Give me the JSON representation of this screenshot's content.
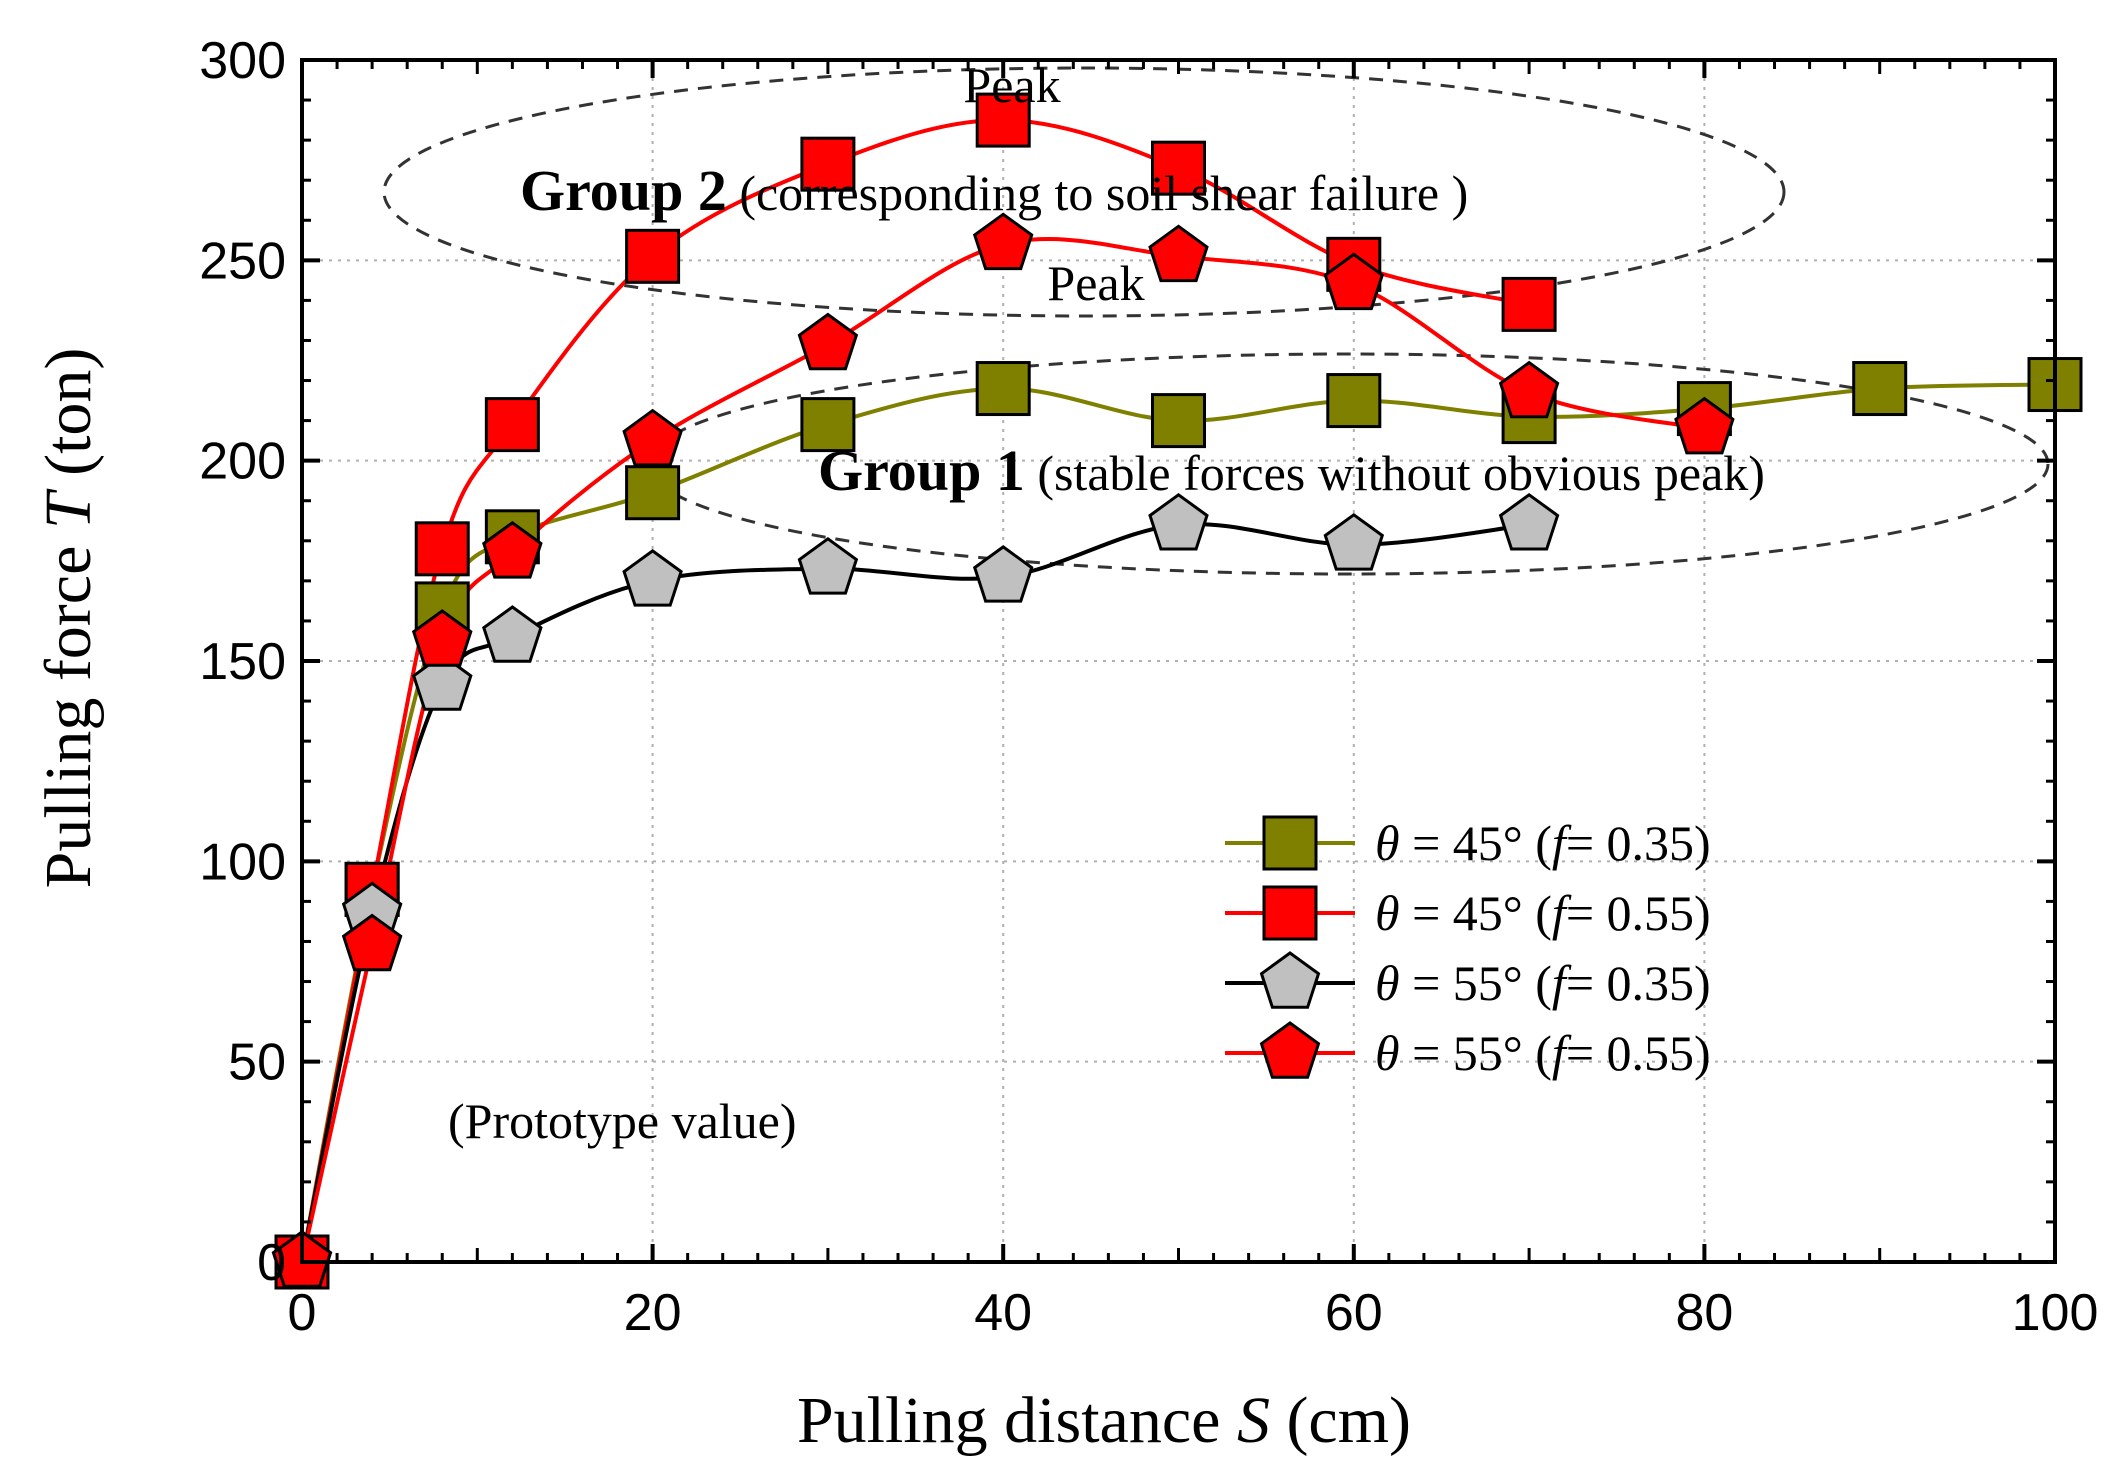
{
  "chart_data": {
    "type": "line",
    "title": "",
    "xlabel": {
      "prefix": "Pulling distance ",
      "var": "S",
      "suffix": " (cm)"
    },
    "ylabel": {
      "prefix": "Pulling force ",
      "var": "T",
      "suffix": " (ton)"
    },
    "xlim": [
      0,
      100
    ],
    "ylim": [
      0,
      300
    ],
    "x_ticks": [
      0,
      20,
      40,
      60,
      80,
      100
    ],
    "y_ticks": [
      0,
      50,
      100,
      150,
      200,
      250,
      300
    ],
    "x_tick_labels": [
      "0",
      "20",
      "40",
      "60",
      "80",
      "100"
    ],
    "y_tick_labels": [
      "0",
      "50",
      "100",
      "150",
      "200",
      "250",
      "300"
    ],
    "grid": true,
    "legend_position": "lower-right",
    "series": [
      {
        "name": "θ = 45° (f= 0.35)",
        "legend": {
          "var1": "θ",
          "mid": " = 45° (",
          "var2": "f",
          "end": "= 0.35)"
        },
        "marker": "square",
        "line_color": "#808000",
        "fill_color": "#808000",
        "x": [
          0,
          4,
          8,
          12,
          20,
          30,
          40,
          50,
          60,
          70,
          80,
          90,
          100
        ],
        "y": [
          0,
          93,
          163,
          181,
          192,
          209,
          218,
          210,
          215,
          211,
          213,
          218,
          219
        ]
      },
      {
        "name": "θ = 45° (f= 0.55)",
        "legend": {
          "var1": "θ",
          "mid": " = 45° (",
          "var2": "f",
          "end": "= 0.55)"
        },
        "marker": "square",
        "line_color": "#ff0000",
        "fill_color": "#ff0000",
        "x": [
          0,
          4,
          8,
          12,
          20,
          30,
          40,
          50,
          60,
          70
        ],
        "y": [
          0,
          93,
          178,
          209,
          251,
          274,
          285,
          273,
          249,
          239
        ]
      },
      {
        "name": "θ = 55° (f= 0.35)",
        "legend": {
          "var1": "θ",
          "mid": " = 55° (",
          "var2": "f",
          "end": "= 0.35)"
        },
        "marker": "pentagon",
        "line_color": "#000000",
        "fill_color": "#c0c0c0",
        "x": [
          0,
          4,
          8,
          12,
          20,
          30,
          40,
          50,
          60,
          70
        ],
        "y": [
          0,
          87,
          144,
          156,
          170,
          173,
          171,
          184,
          179,
          184
        ]
      },
      {
        "name": "θ = 55° (f= 0.55)",
        "legend": {
          "var1": "θ",
          "mid": " = 55° (",
          "var2": "f",
          "end": "= 0.55)"
        },
        "marker": "pentagon",
        "line_color": "#ff0000",
        "fill_color": "#ff0000",
        "x": [
          0,
          4,
          8,
          12,
          20,
          30,
          40,
          50,
          60,
          70,
          80
        ],
        "y": [
          0,
          79,
          155,
          177,
          205,
          229,
          254,
          251,
          244,
          217,
          208
        ]
      }
    ],
    "annotations": {
      "peak1": "Peak",
      "peak2": "Peak",
      "group2_bold": "Group 2",
      "group2_rest": " (corresponding  to soil shear failure )",
      "group1_bold": "Group 1",
      "group1_rest": " (stable forces without obvious peak)",
      "prototype": "(Prototype value)"
    }
  }
}
